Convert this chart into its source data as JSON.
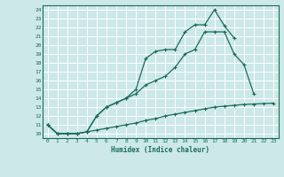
{
  "xlabel": "Humidex (Indice chaleur)",
  "bg_color": "#cce8e8",
  "grid_color": "#b0d4d4",
  "line_color": "#1a6b5a",
  "xlim": [
    -0.5,
    23.5
  ],
  "ylim": [
    9.5,
    24.5
  ],
  "xticks": [
    0,
    1,
    2,
    3,
    4,
    5,
    6,
    7,
    8,
    9,
    10,
    11,
    12,
    13,
    14,
    15,
    16,
    17,
    18,
    19,
    20,
    21,
    22,
    23
  ],
  "yticks": [
    10,
    11,
    12,
    13,
    14,
    15,
    16,
    17,
    18,
    19,
    20,
    21,
    22,
    23,
    24
  ],
  "line1_x": [
    0,
    1,
    2,
    3,
    4,
    5,
    6,
    7,
    8,
    9,
    10,
    11,
    12,
    13,
    14,
    15,
    16,
    17,
    18,
    19,
    20,
    21,
    22,
    23
  ],
  "line1_y": [
    11.0,
    10.0,
    10.0,
    10.0,
    10.2,
    10.4,
    10.6,
    10.8,
    11.0,
    11.2,
    11.5,
    11.7,
    12.0,
    12.2,
    12.4,
    12.6,
    12.8,
    13.0,
    13.1,
    13.2,
    13.3,
    13.35,
    13.4,
    13.45
  ],
  "line2_x": [
    0,
    1,
    2,
    3,
    4,
    5,
    6,
    7,
    8,
    9,
    10,
    11,
    12,
    13,
    14,
    15,
    16,
    17,
    18,
    19,
    20,
    21,
    22,
    23
  ],
  "line2_y": [
    11.0,
    10.0,
    10.0,
    10.0,
    10.2,
    12.0,
    13.0,
    13.5,
    14.0,
    14.5,
    15.5,
    16.0,
    16.5,
    17.5,
    19.0,
    19.5,
    21.5,
    21.5,
    21.5,
    19.0,
    17.8,
    14.5,
    null,
    null
  ],
  "line3_x": [
    0,
    1,
    2,
    3,
    4,
    5,
    6,
    7,
    8,
    9,
    10,
    11,
    12,
    13,
    14,
    15,
    16,
    17,
    18,
    19,
    20,
    21,
    22,
    23
  ],
  "line3_y": [
    11.0,
    10.0,
    10.0,
    10.0,
    10.2,
    12.0,
    13.0,
    13.5,
    14.0,
    15.0,
    18.5,
    19.3,
    19.5,
    19.5,
    21.5,
    22.3,
    22.3,
    24.0,
    22.2,
    20.8,
    null,
    null,
    null,
    null
  ]
}
